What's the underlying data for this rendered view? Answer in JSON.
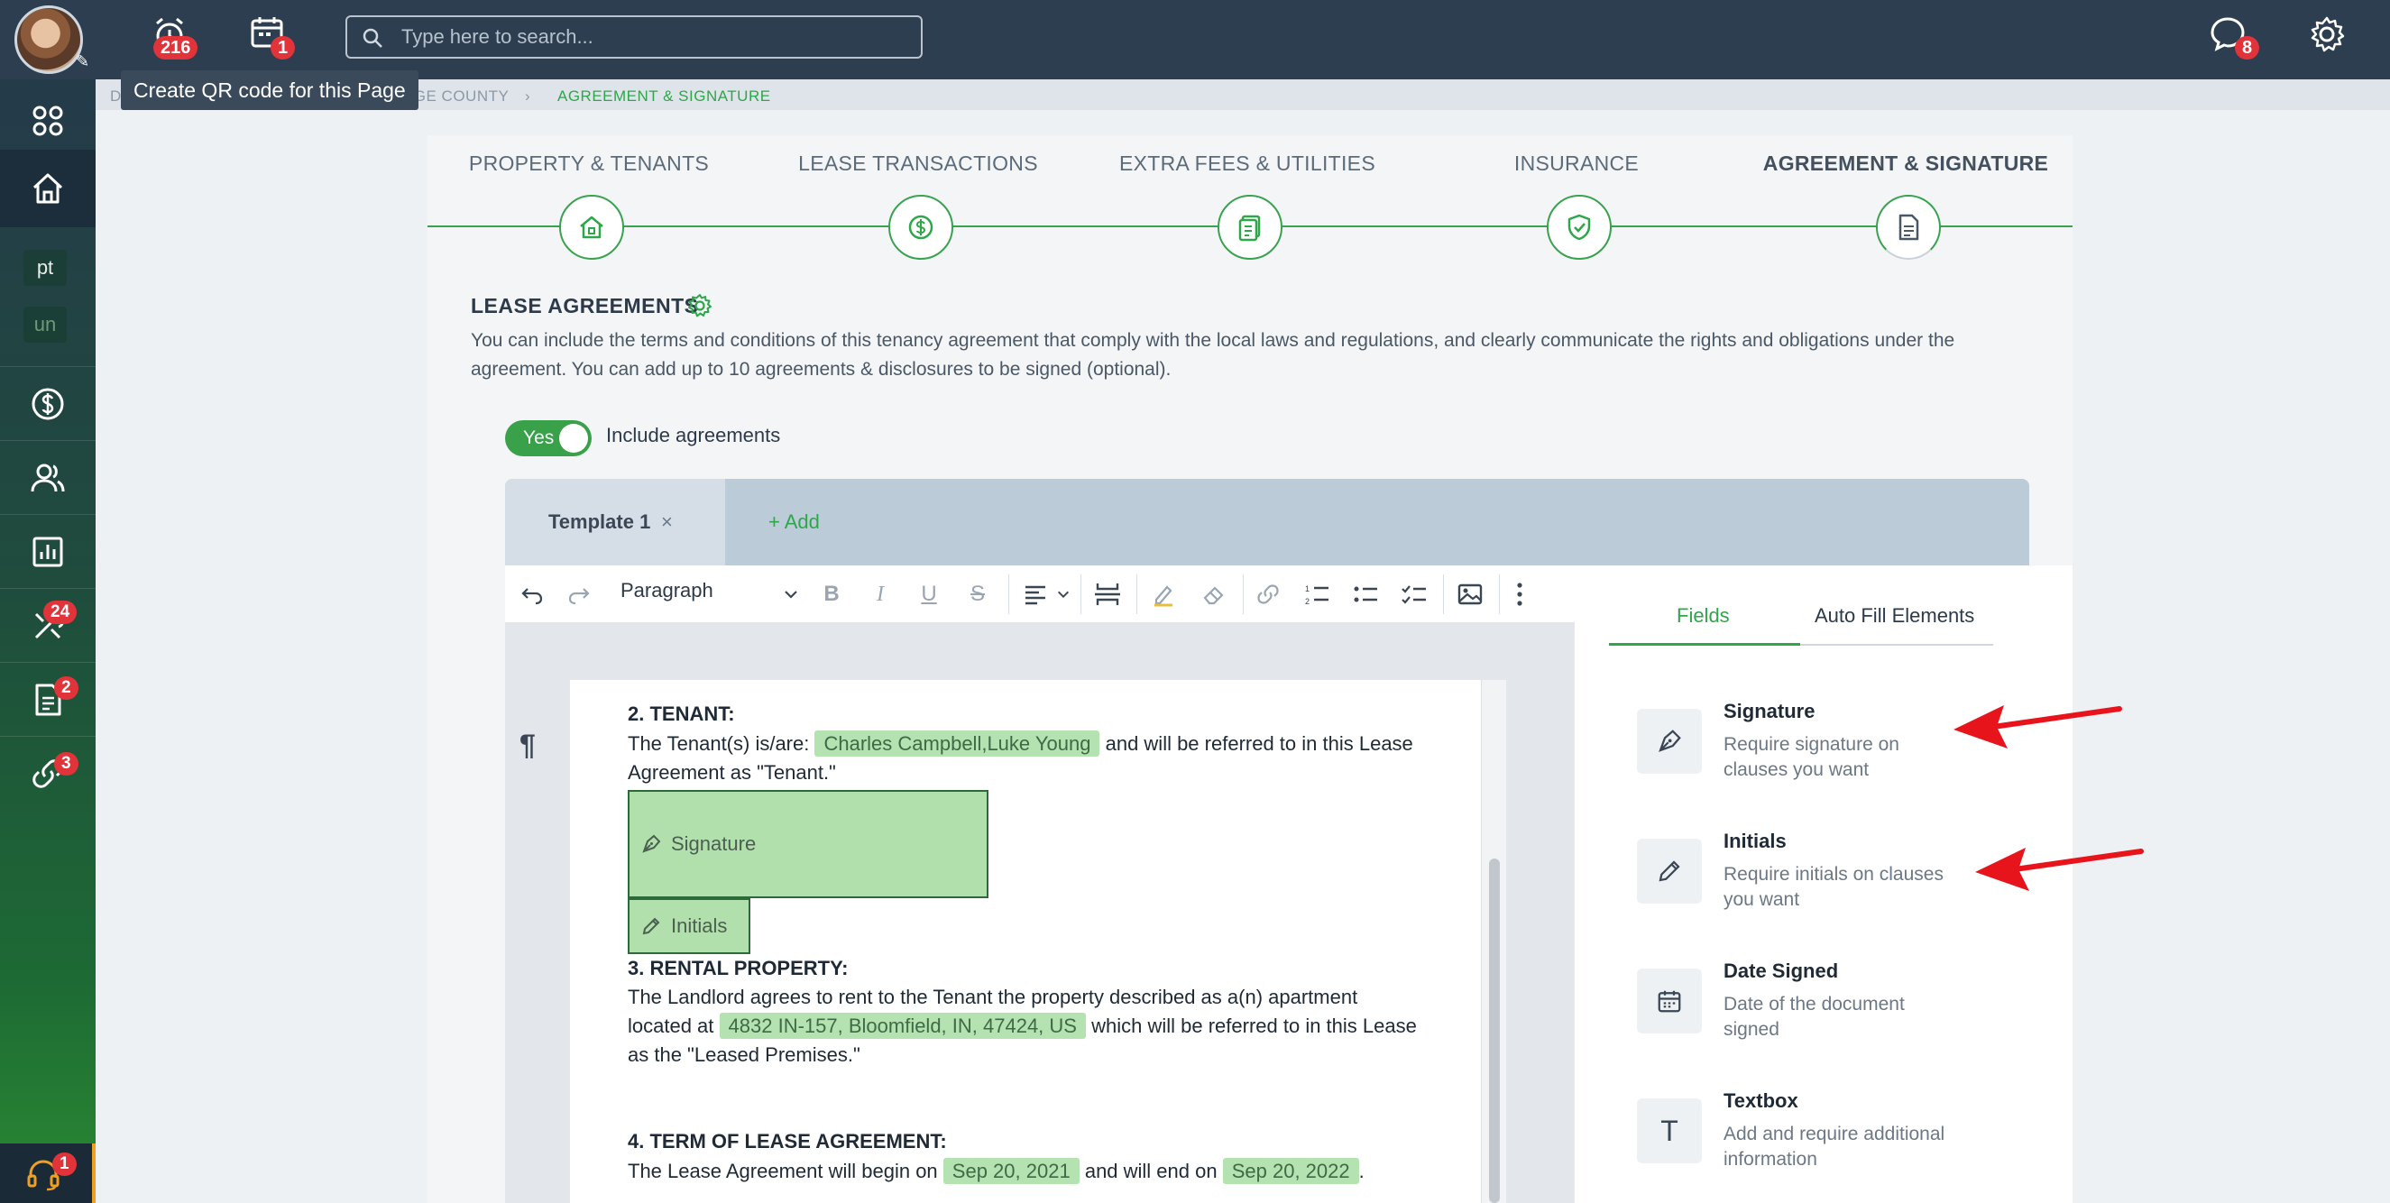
{
  "topbar": {
    "alarm_count": "216",
    "calendar_count": "1",
    "search_placeholder": "Type here to search...",
    "messages_count": "8"
  },
  "tooltip": "Create QR code for this Page",
  "breadcrumb": {
    "partial_left": "D",
    "county": "NGE COUNTY",
    "current": "AGREEMENT & SIGNATURE"
  },
  "sidebar": {
    "chip_pt": "pt",
    "chip_un": "un",
    "tools_badge": "24",
    "docs_badge": "2",
    "links_badge": "3",
    "support_badge": "1"
  },
  "steps": [
    {
      "label": "PROPERTY & TENANTS"
    },
    {
      "label": "LEASE TRANSACTIONS"
    },
    {
      "label": "EXTRA FEES & UTILITIES"
    },
    {
      "label": "INSURANCE"
    },
    {
      "label": "AGREEMENT & SIGNATURE"
    }
  ],
  "lease": {
    "title": "LEASE AGREEMENTS",
    "description": "You can include the terms and conditions of this tenancy agreement that comply with the local laws and regulations, and clearly communicate the rights and obligations under the agreement. You can add up to 10 agreements & disclosures to be signed (optional).",
    "toggle_label": "Yes",
    "toggle_text": "Include agreements"
  },
  "tabs": {
    "template": "Template 1",
    "close": "×",
    "add": "+ Add"
  },
  "toolbar": {
    "paragraph": "Paragraph"
  },
  "document": {
    "tenant_heading": "2. TENANT:",
    "tenant_line_a": "The Tenant(s) is/are:",
    "tenant_names": "Charles Campbell,Luke Young",
    "tenant_line_b": "and will be referred to in this Lease",
    "tenant_line_c": "Agreement as \"Tenant.\"",
    "signature_field": "Signature",
    "initials_field": "Initials",
    "rental_heading": "3. RENTAL PROPERTY:",
    "rental_line_a": "The Landlord agrees to rent to the Tenant the property described as a(n) apartment",
    "rental_line_b": "located at",
    "address": "4832 IN-157, Bloomfield, IN, 47424, US",
    "rental_line_c": "which will be referred to in this Lease",
    "rental_line_d": "as the \"Leased Premises.\"",
    "term_heading": "4. TERM OF LEASE AGREEMENT:",
    "term_line_a": "The Lease Agreement will begin on",
    "start_date": "Sep 20, 2021",
    "term_line_b": "and will end on",
    "end_date": "Sep 20, 2022",
    "term_line_c": "."
  },
  "right_panel": {
    "tab_fields": "Fields",
    "tab_autofill": "Auto Fill Elements",
    "fields": [
      {
        "title": "Signature",
        "desc": "Require signature on clauses you want"
      },
      {
        "title": "Initials",
        "desc": "Require initials on clauses you want"
      },
      {
        "title": "Date Signed",
        "desc": "Date of the document signed"
      },
      {
        "title": "Textbox",
        "desc": "Add and require additional information"
      }
    ],
    "textbox_glyph": "T"
  },
  "colors": {
    "accent_green": "#2fa64a",
    "topbar": "#2c3e50",
    "badge_red": "#e0333a",
    "field_green": "#b4e2b0",
    "annotation_arrow": "#e8141c"
  }
}
